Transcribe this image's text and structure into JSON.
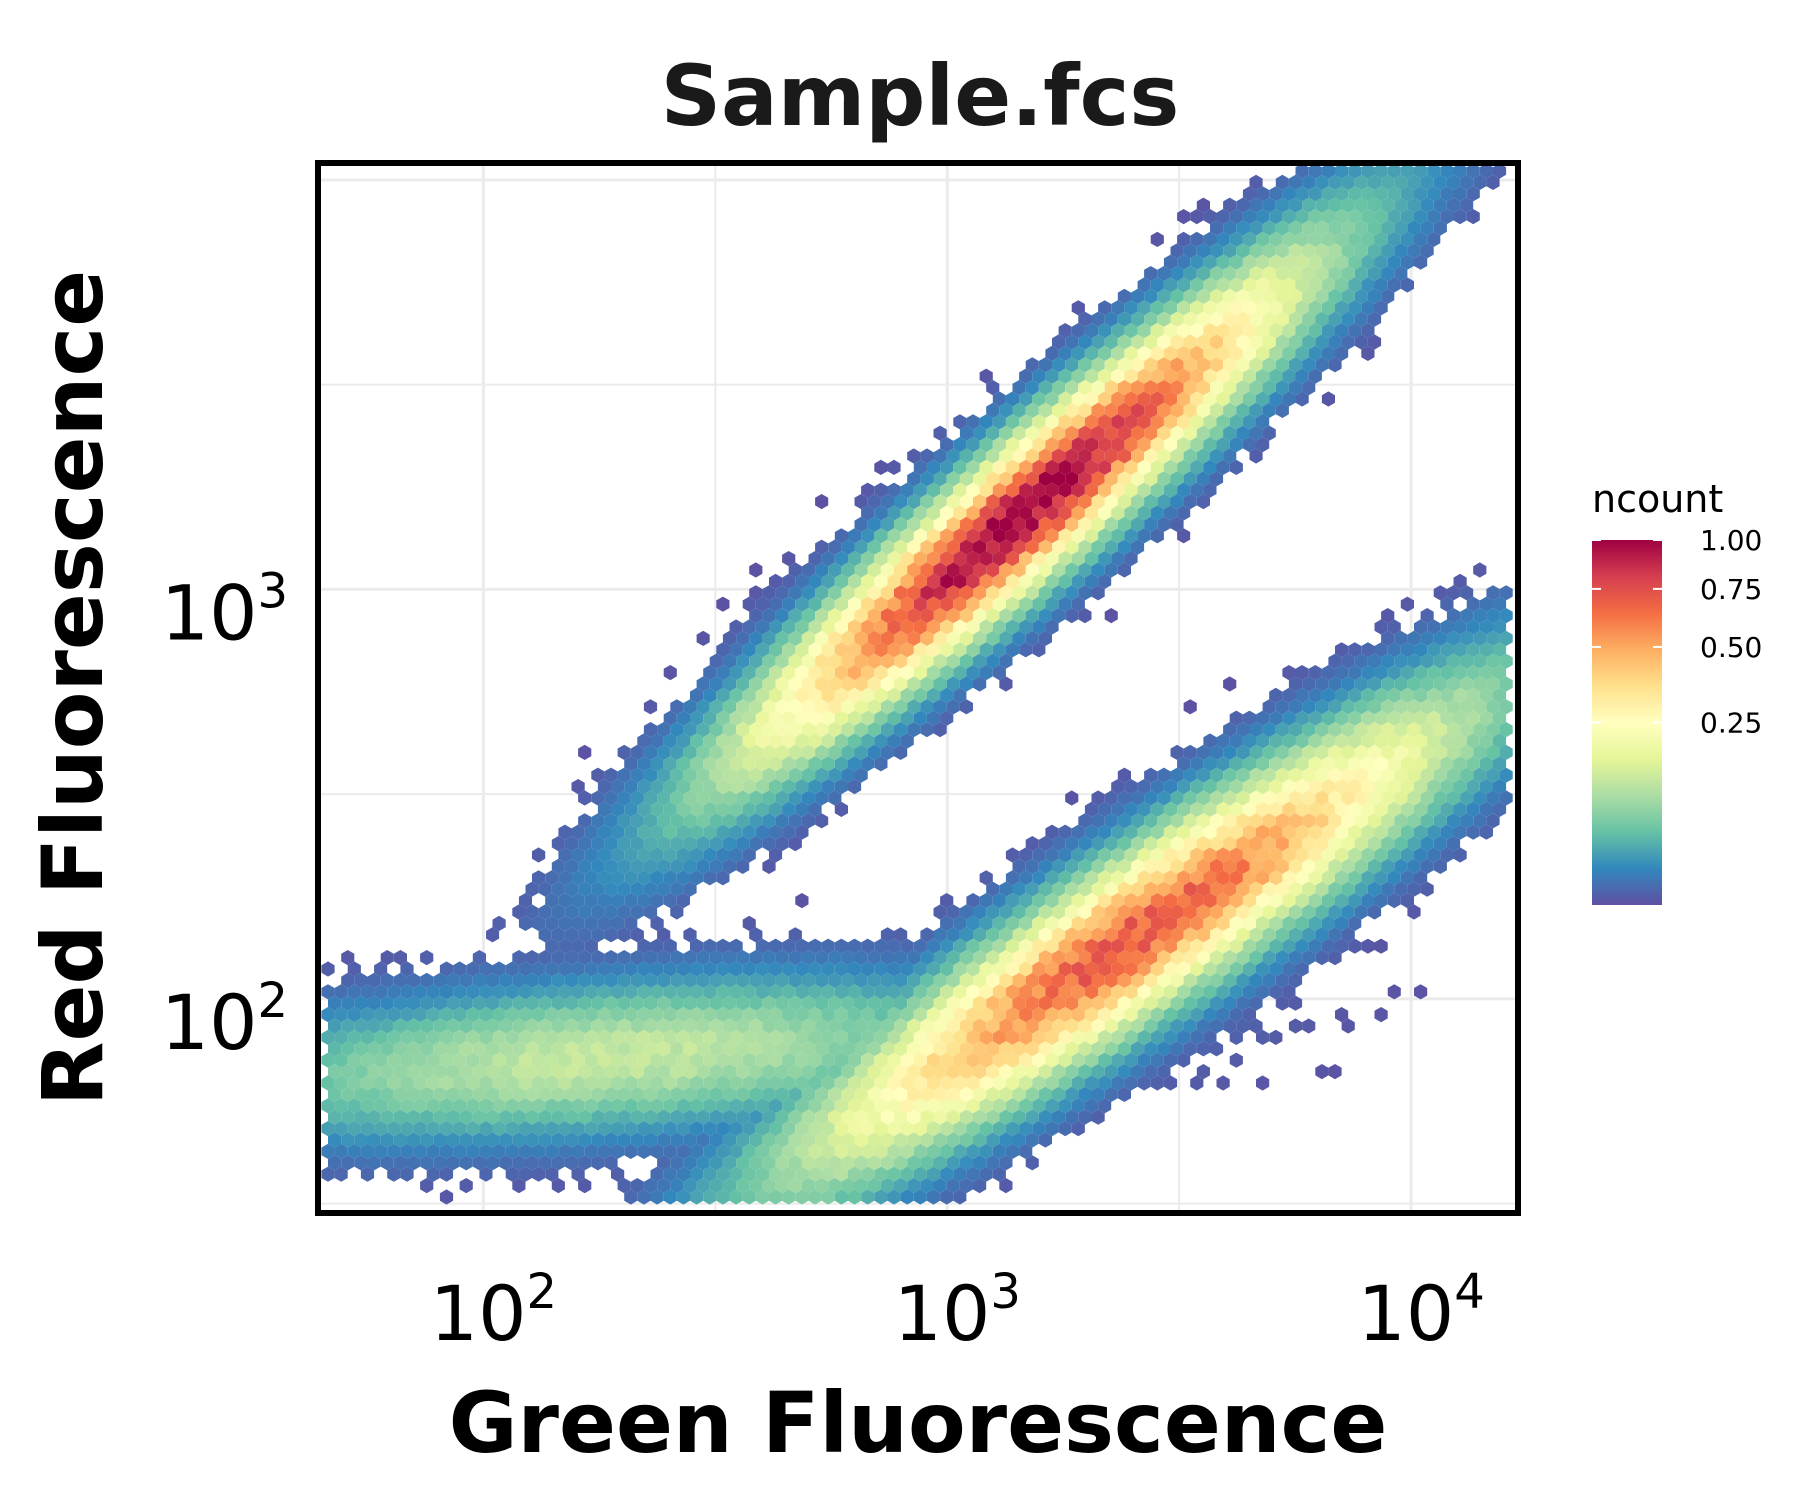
{
  "chart_data": {
    "type": "hexbin",
    "title": "Sample.fcs",
    "xlabel": "Green Fluorescence",
    "ylabel": "Red Fluorescence",
    "x_scale": "log10",
    "y_scale": "log10",
    "xlim": [
      44,
      17000
    ],
    "ylim": [
      30,
      11000
    ],
    "x_ticks": [
      {
        "value": 100,
        "base": "10",
        "exp": "2"
      },
      {
        "value": 1000,
        "base": "10",
        "exp": "3"
      },
      {
        "value": 10000,
        "base": "10",
        "exp": "4"
      }
    ],
    "y_ticks": [
      {
        "value": 100,
        "base": "10",
        "exp": "2"
      },
      {
        "value": 1000,
        "base": "10",
        "exp": "3"
      }
    ],
    "grid": true,
    "legend": {
      "title": "ncount",
      "position": "right",
      "ticks": [
        "1.00",
        "0.75",
        "0.50",
        "0.25"
      ],
      "colors": [
        "#5E4FA2",
        "#3288BD",
        "#66C2A5",
        "#ABDDA4",
        "#E6F598",
        "#FFFFBF",
        "#FEE08B",
        "#FDAE61",
        "#F46D43",
        "#D53E4F",
        "#9E0142"
      ]
    },
    "populations": [
      {
        "name": "",
        "center_x": 1450,
        "center_y": 1520,
        "spread_log_major": 0.42,
        "spread_log_minor": 0.07,
        "angle_deg": 45,
        "peak_ncount": 1.0
      },
      {
        "name": "",
        "center_x": 2500,
        "center_y": 140,
        "spread_log_major": 0.45,
        "spread_log_minor": 0.085,
        "angle_deg": 38,
        "peak_ncount": 0.7
      },
      {
        "name": "",
        "center_x": 190,
        "center_y": 72,
        "spread_log_major": 0.45,
        "spread_log_minor": 0.09,
        "angle_deg": 5,
        "peak_ncount": 0.12
      }
    ]
  }
}
